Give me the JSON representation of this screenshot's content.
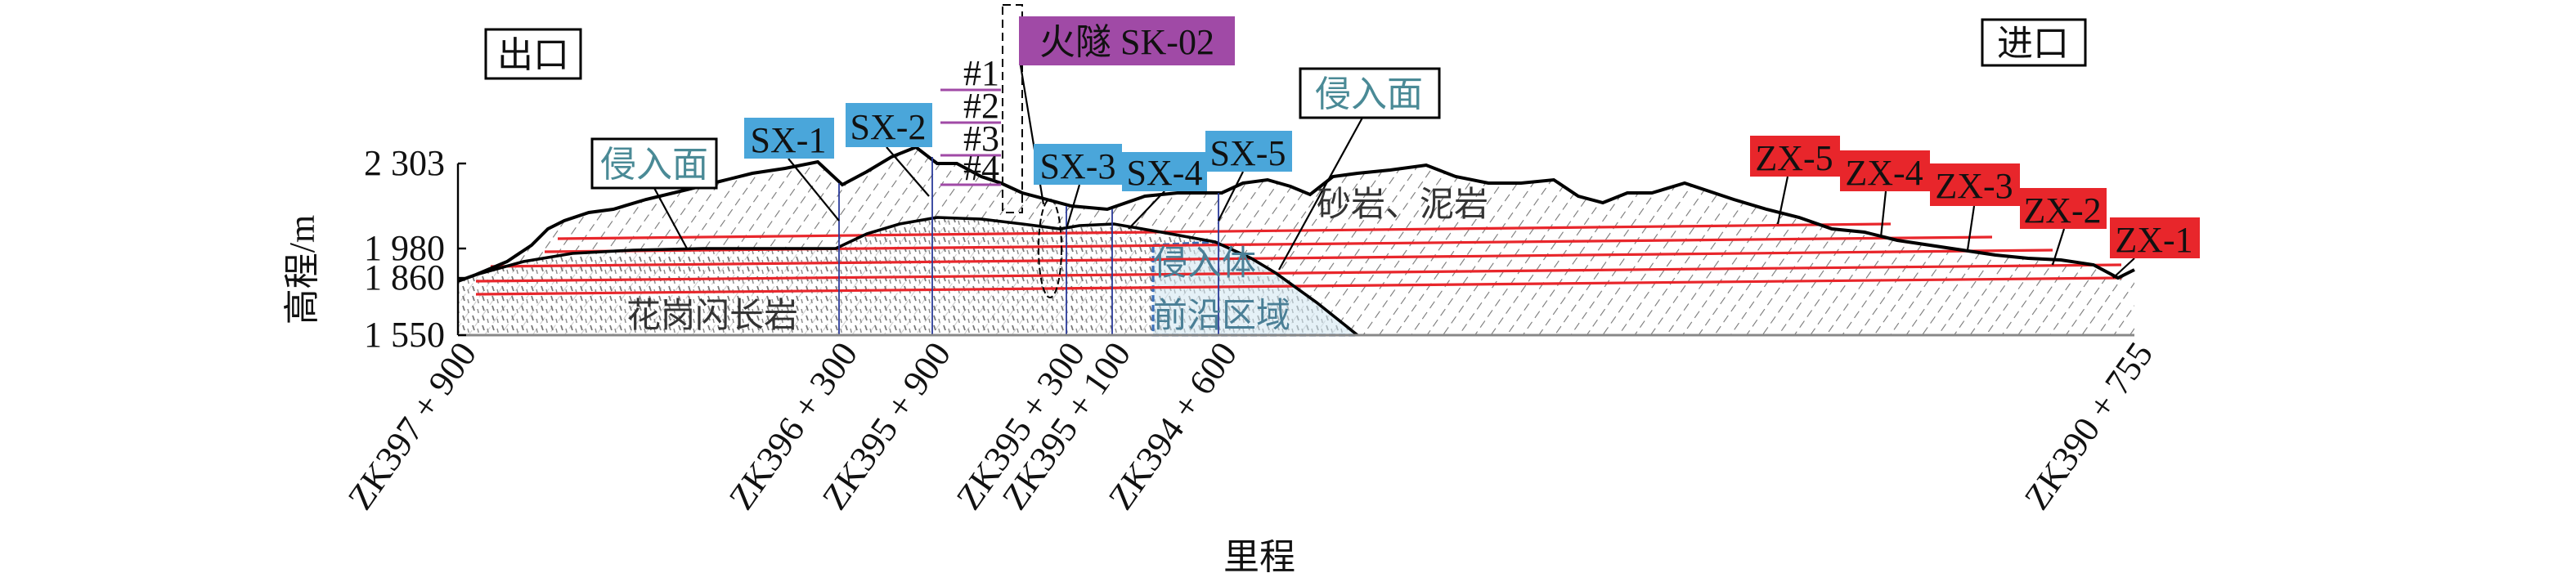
{
  "portals": {
    "exit": "出口",
    "entrance": "进口"
  },
  "axes": {
    "ylabel": "高程/m",
    "xlabel": "里程",
    "yticks": [
      "2 303",
      "1 980",
      "1 860",
      "1 550"
    ],
    "xticks": [
      "ZK397 + 900",
      "ZK396 + 300",
      "ZK395 + 900",
      "ZK395 + 300",
      "ZK395 + 100",
      "ZK394 + 600",
      "ZK390 + 755"
    ]
  },
  "labels": {
    "tunnel": "火隧 SK-02",
    "intrusion_surface_left": "侵入面",
    "intrusion_surface_right": "侵入面",
    "sandstone": "砂岩、泥岩",
    "granodiorite": "花岗闪长岩",
    "intrusion_body": "侵入体",
    "front_zone": "前沿区域"
  },
  "boreholes_sx": [
    "SX-1",
    "SX-2",
    "SX-3",
    "SX-4",
    "SX-5"
  ],
  "boreholes_zx": [
    "ZX-5",
    "ZX-4",
    "ZX-3",
    "ZX-2",
    "ZX-1"
  ],
  "sections": [
    "#1",
    "#2",
    "#3",
    "#4"
  ],
  "colors": {
    "sx": "#4aa6da",
    "zx": "#e8262b",
    "tunnel": "#a04aa6",
    "lines": "#e8262b",
    "intrusion_text": "#4a8a96"
  }
}
